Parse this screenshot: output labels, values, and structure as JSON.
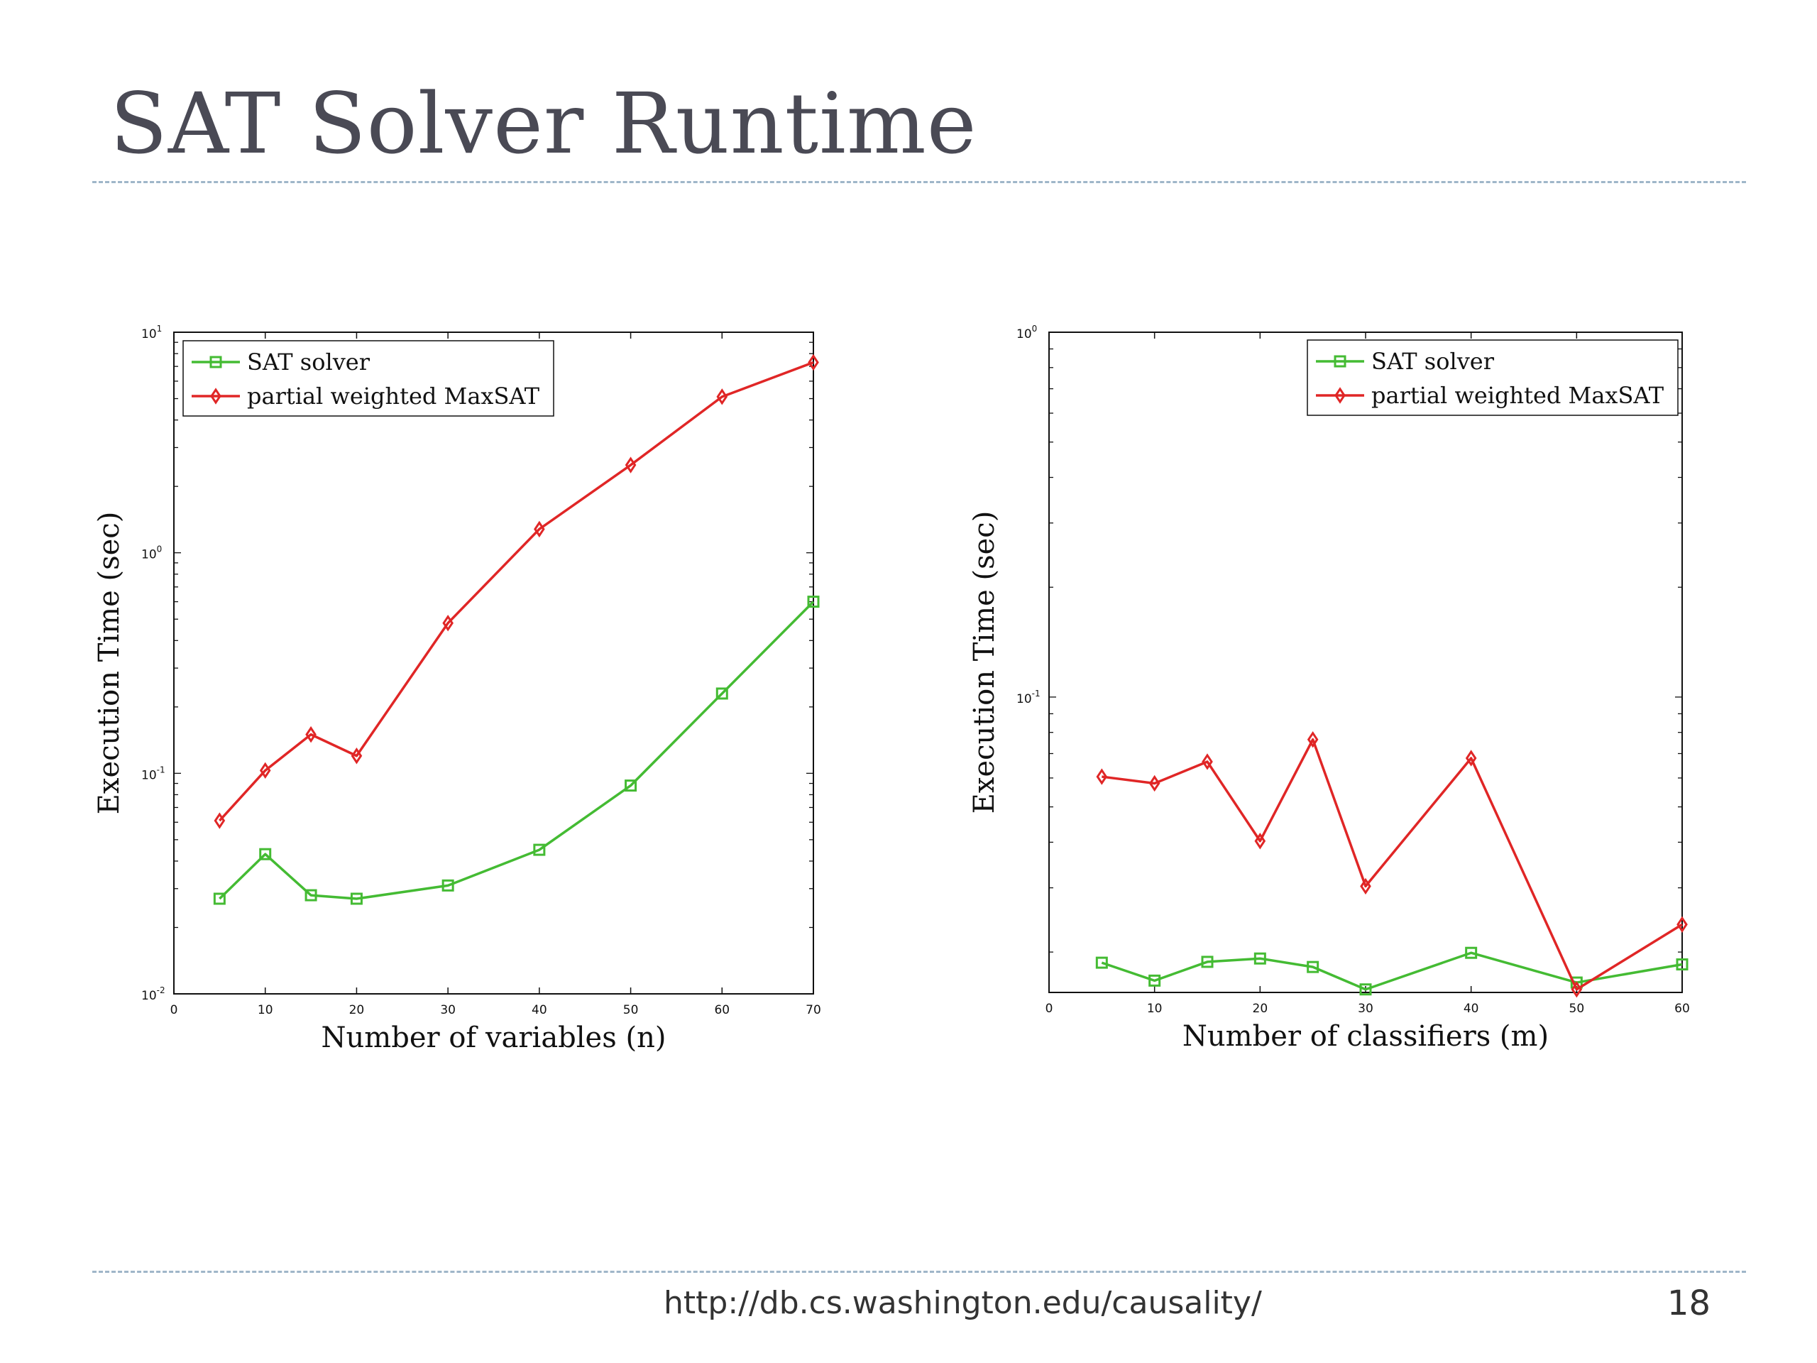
{
  "slide": {
    "title": "SAT Solver Runtime",
    "footer_url": "http://db.cs.washington.edu/causality/",
    "page_number": "18"
  },
  "colors": {
    "sat": "#44bb33",
    "maxsat": "#e02626",
    "rule": "#9fb6c9",
    "title": "#4a4a55"
  },
  "chart_data": [
    {
      "type": "line",
      "xlabel": "Number of variables (n)",
      "ylabel": "Execution Time (sec)",
      "xlim": [
        0,
        70
      ],
      "ylim": [
        0.01,
        10
      ],
      "yscale": "log",
      "x_ticks": [
        0,
        10,
        20,
        30,
        40,
        50,
        60,
        70
      ],
      "y_ticks": [
        {
          "base": "10",
          "exp": "-2"
        },
        {
          "base": "10",
          "exp": "-1"
        },
        {
          "base": "10",
          "exp": "0"
        },
        {
          "base": "10",
          "exp": "1"
        }
      ],
      "legend_position": "top-left",
      "series": [
        {
          "name": "SAT solver",
          "marker": "square",
          "color": "#44bb33",
          "x": [
            5,
            10,
            15,
            20,
            30,
            40,
            50,
            60,
            70
          ],
          "y": [
            0.027,
            0.043,
            0.028,
            0.027,
            0.031,
            0.045,
            0.088,
            0.23,
            0.6
          ]
        },
        {
          "name": "partial weighted MaxSAT",
          "marker": "diamond",
          "color": "#e02626",
          "x": [
            5,
            10,
            15,
            20,
            30,
            40,
            50,
            60,
            70
          ],
          "y": [
            0.061,
            0.103,
            0.15,
            0.12,
            0.48,
            1.28,
            2.5,
            5.1,
            7.3
          ]
        }
      ]
    },
    {
      "type": "line",
      "xlabel": "Number of classifiers (m)",
      "ylabel": "Execution Time (sec)",
      "xlim": [
        0,
        60
      ],
      "ylim": [
        0.0155,
        1
      ],
      "yscale": "log",
      "x_ticks": [
        0,
        10,
        20,
        30,
        40,
        50,
        60
      ],
      "y_ticks": [
        {
          "base": "10",
          "exp": "-1"
        },
        {
          "base": "10",
          "exp": "0"
        }
      ],
      "legend_position": "top-right",
      "series": [
        {
          "name": "SAT solver",
          "marker": "square",
          "color": "#44bb33",
          "x": [
            5,
            10,
            15,
            20,
            25,
            30,
            40,
            50,
            60
          ],
          "y": [
            0.0187,
            0.0167,
            0.0188,
            0.0192,
            0.0182,
            0.0158,
            0.0199,
            0.0165,
            0.0185
          ]
        },
        {
          "name": "partial weighted MaxSAT",
          "marker": "diamond",
          "color": "#e02626",
          "x": [
            5,
            10,
            15,
            20,
            25,
            30,
            40,
            50,
            60
          ],
          "y": [
            0.0605,
            0.058,
            0.0665,
            0.0403,
            0.0765,
            0.0303,
            0.068,
            0.0158,
            0.0238
          ]
        }
      ]
    }
  ]
}
